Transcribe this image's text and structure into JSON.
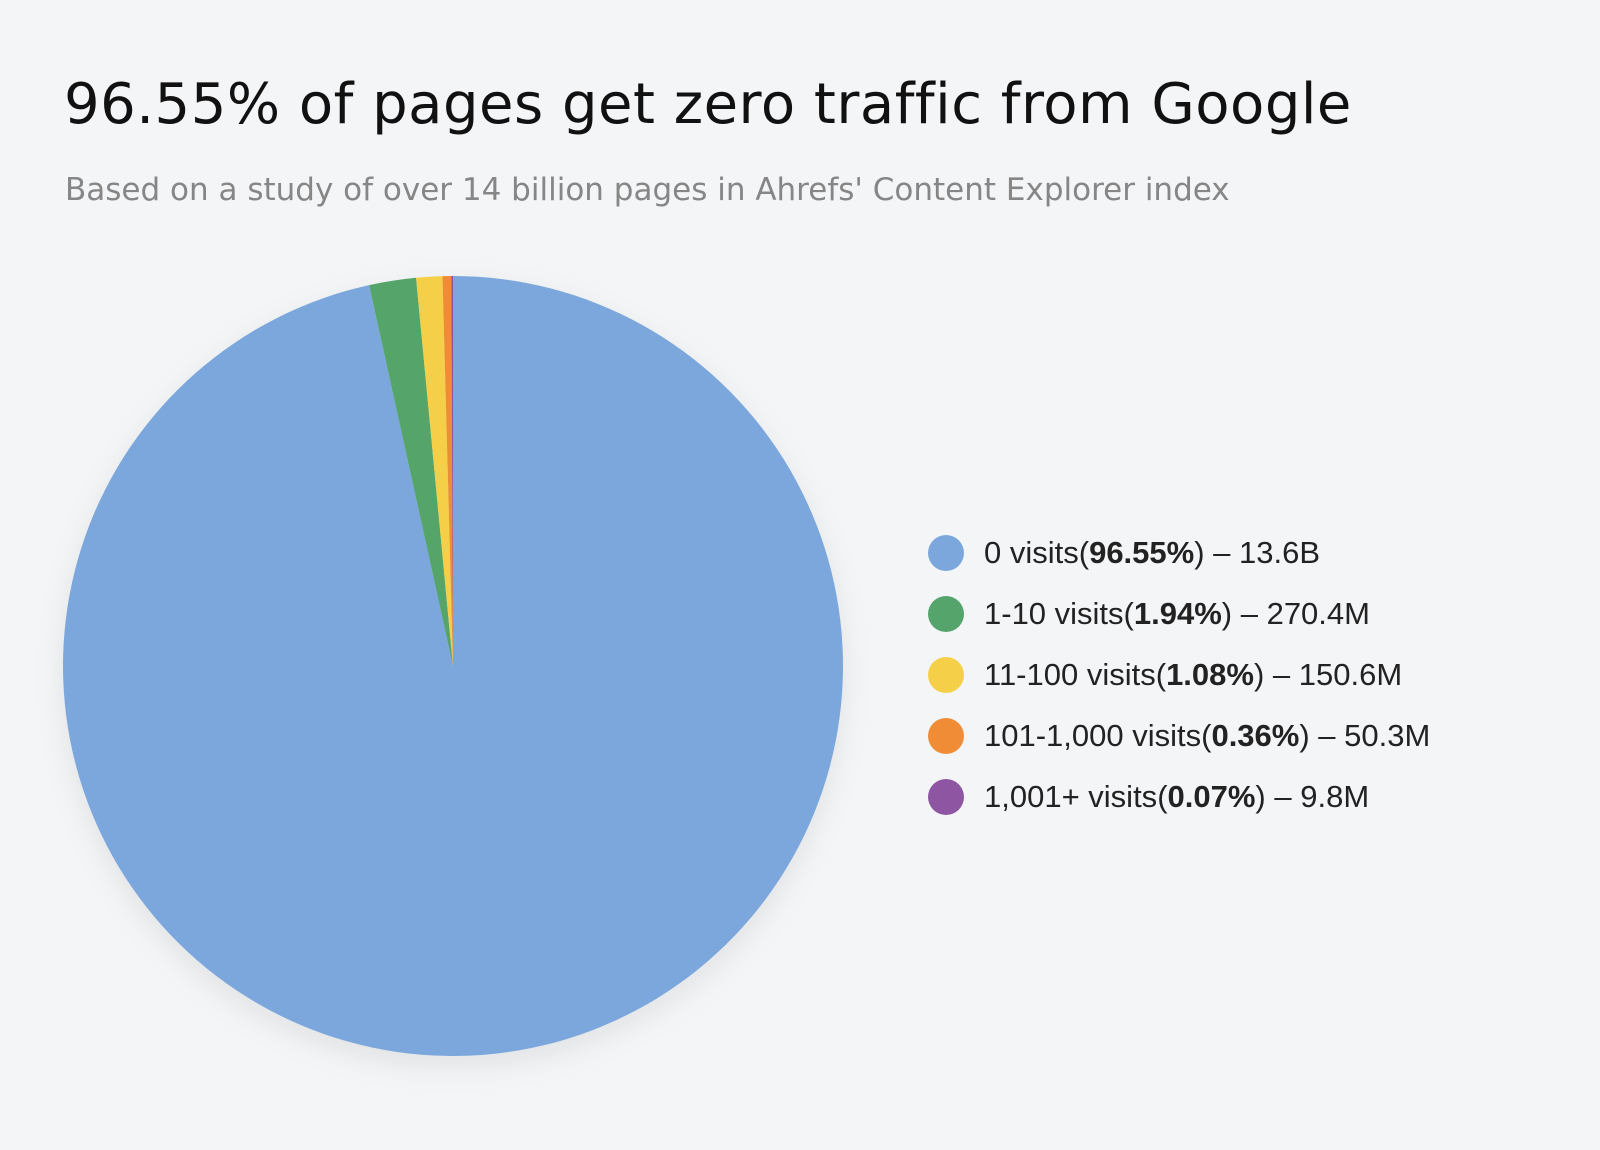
{
  "chart_data": {
    "type": "pie",
    "title": "96.55% of pages get zero traffic from Google",
    "subtitle": "Based on a study of over 14 billion pages in Ahrefs' Content Explorer index",
    "categories": [
      "0 visits",
      "1-10 visits",
      "11-100 visits",
      "101-1,000 visits",
      "1,001+ visits"
    ],
    "values": [
      96.55,
      1.94,
      1.08,
      0.36,
      0.07
    ],
    "value_labels": [
      "96.55%",
      "1.94%",
      "1.08%",
      "0.36%",
      "0.07%"
    ],
    "counts": [
      13600000000,
      270400000,
      150600000,
      50300000,
      9800000
    ],
    "count_labels": [
      "13.6B",
      "270.4M",
      "150.6M",
      "50.3M",
      "9.8M"
    ],
    "colors": [
      "#7ba7dc",
      "#55a46b",
      "#f4cf47",
      "#f08c35",
      "#8e55a2"
    ],
    "legend": "right"
  }
}
